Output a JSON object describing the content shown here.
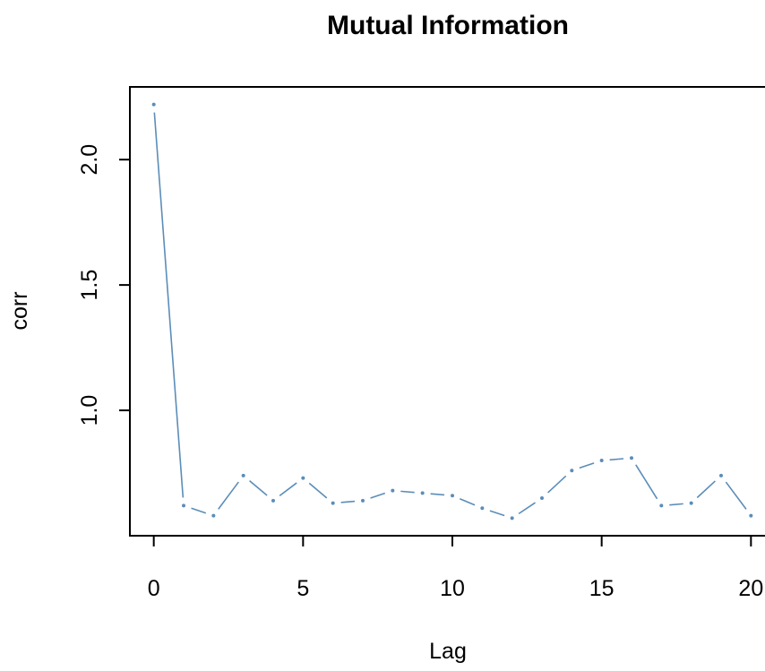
{
  "chart_data": {
    "type": "line",
    "title": "Mutual Information",
    "xlabel": "Lag",
    "ylabel": "corr",
    "xlim": [
      -0.8,
      20.8
    ],
    "ylim": [
      0.5,
      2.29
    ],
    "x_ticks": [
      0,
      5,
      10,
      15,
      20
    ],
    "x_tick_labels": [
      "0",
      "5",
      "10",
      "15",
      "20"
    ],
    "y_ticks": [
      1.0,
      1.5,
      2.0
    ],
    "y_tick_labels": [
      "1.0",
      "1.5",
      "2.0"
    ],
    "grid": false,
    "series": [
      {
        "color": "#5b8db8",
        "x": [
          0,
          1,
          2,
          3,
          4,
          5,
          6,
          7,
          8,
          9,
          10,
          11,
          12,
          13,
          14,
          15,
          16,
          17,
          18,
          19,
          20
        ],
        "values": [
          2.22,
          0.62,
          0.58,
          0.74,
          0.64,
          0.73,
          0.63,
          0.64,
          0.68,
          0.67,
          0.66,
          0.61,
          0.57,
          0.65,
          0.76,
          0.8,
          0.81,
          0.62,
          0.63,
          0.74,
          0.58
        ]
      }
    ]
  }
}
